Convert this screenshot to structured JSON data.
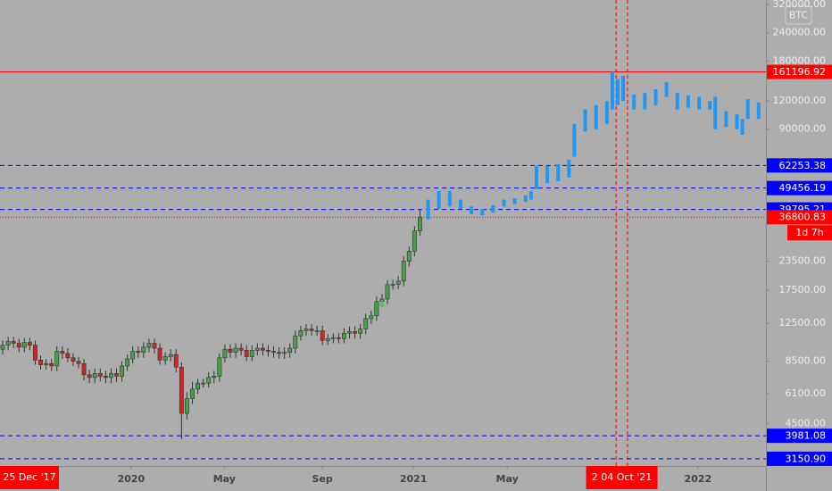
{
  "chart_data": {
    "type": "candlestick",
    "symbol": "BTC",
    "log_scale": true,
    "ylim": [
      2270,
      335000
    ],
    "xlim": [
      0,
      141.35
    ],
    "yticks": [
      {
        "value": 320000,
        "label": "320000.00"
      },
      {
        "value": 240000,
        "label": "240000.00"
      },
      {
        "value": 180000,
        "label": "180000.00"
      },
      {
        "value": 120000,
        "label": "120000.00"
      },
      {
        "value": 90000,
        "label": "90000.00"
      },
      {
        "value": 23500,
        "label": "23500.00"
      },
      {
        "value": 17500,
        "label": "17500.00"
      },
      {
        "value": 12500,
        "label": "12500.00"
      },
      {
        "value": 8500,
        "label": "8500.00"
      },
      {
        "value": 6100,
        "label": "6100.00"
      },
      {
        "value": 4500,
        "label": "4500.00"
      }
    ],
    "xticks": [
      {
        "value": 24.2,
        "label": "2020"
      },
      {
        "value": 41.4,
        "label": "May"
      },
      {
        "value": 59.5,
        "label": "Sep"
      },
      {
        "value": 76.3,
        "label": "2021"
      },
      {
        "value": 93.6,
        "label": "May"
      },
      {
        "value": 128.8,
        "label": "2022"
      }
    ],
    "start_label": "25 Dec '17",
    "cursor_label": "2  04 Oct '21",
    "cursor_lines": [
      113.7,
      115.8
    ],
    "countdown": "1d 7h",
    "up_color": "#43a047",
    "down_color": "#c62828",
    "open": [
      9600,
      10000,
      10400,
      10200,
      9800,
      10300,
      10000,
      8600,
      8200,
      8300,
      8100,
      9400,
      9200,
      8800,
      8500,
      8300,
      7400,
      7200,
      7500,
      7300,
      7200,
      7500,
      7300,
      8100,
      8700,
      9400,
      9300,
      9800,
      10200,
      9700,
      8600,
      8900,
      9100,
      8000,
      5000,
      5800,
      6400,
      6800,
      6800,
      7200,
      7300,
      8800,
      9600,
      9300,
      9700,
      9500,
      8900,
      9500,
      9700,
      9500,
      9400,
      9300,
      9200,
      9300,
      9700,
      11000,
      11600,
      11800,
      11600,
      11600,
      10500,
      10700,
      10800,
      10700,
      11300,
      11500,
      11300,
      11800,
      13100,
      13500,
      15600,
      16000,
      18500,
      18600,
      19200,
      23500,
      26000,
      32000
    ],
    "high": [
      10500,
      10900,
      10900,
      10700,
      10800,
      10800,
      10500,
      9000,
      8700,
      8700,
      9900,
      9900,
      9700,
      9200,
      8900,
      8700,
      7800,
      7900,
      7900,
      7700,
      7900,
      7900,
      8500,
      9100,
      9900,
      9900,
      10300,
      10700,
      10700,
      10200,
      9300,
      9600,
      9600,
      8400,
      6200,
      6900,
      7100,
      7100,
      7600,
      7700,
      9200,
      10100,
      10100,
      10200,
      10200,
      10000,
      10000,
      10200,
      10200,
      10000,
      9900,
      9800,
      9800,
      10200,
      11600,
      12200,
      12400,
      12400,
      12200,
      12200,
      11200,
      11300,
      11300,
      11900,
      12100,
      12100,
      12400,
      13800,
      14200,
      16400,
      16800,
      19400,
      19500,
      20200,
      24700,
      27300,
      33600,
      40000
    ],
    "low": [
      9100,
      9500,
      9700,
      9300,
      9300,
      9500,
      8200,
      7800,
      7800,
      7700,
      7700,
      8700,
      8400,
      8100,
      7900,
      7000,
      6800,
      6800,
      6900,
      6800,
      6800,
      6900,
      6900,
      7700,
      8300,
      8800,
      8800,
      9300,
      9200,
      8200,
      8200,
      8500,
      7600,
      3850,
      4700,
      5500,
      6100,
      6500,
      6500,
      6800,
      6900,
      8400,
      8800,
      8800,
      9000,
      8500,
      8500,
      9000,
      9000,
      8900,
      8800,
      8700,
      8700,
      8800,
      9200,
      10500,
      11000,
      11000,
      11000,
      10000,
      10000,
      10200,
      10200,
      10200,
      10700,
      10700,
      10700,
      11200,
      12400,
      12800,
      14800,
      15200,
      17600,
      17700,
      18200,
      22300,
      24700,
      30400
    ],
    "close": [
      10000,
      10400,
      10200,
      9800,
      10300,
      10000,
      8600,
      8200,
      8300,
      8100,
      9400,
      9200,
      8800,
      8500,
      8300,
      7400,
      7200,
      7500,
      7300,
      7200,
      7500,
      7300,
      8100,
      8700,
      9400,
      9300,
      9800,
      10200,
      9700,
      8600,
      8900,
      9100,
      8000,
      5000,
      5800,
      6400,
      6800,
      6800,
      7200,
      7300,
      8800,
      9600,
      9300,
      9700,
      9500,
      8900,
      9500,
      9700,
      9500,
      9400,
      9300,
      9200,
      9300,
      9700,
      11000,
      11600,
      11800,
      11600,
      11600,
      10500,
      10700,
      10800,
      10700,
      11300,
      11500,
      11300,
      11800,
      13100,
      13500,
      15600,
      16000,
      18500,
      18600,
      19200,
      23500,
      26000,
      32000,
      36800
    ],
    "projection": {
      "color": "#2196f3",
      "x": [
        79,
        81,
        83,
        85,
        87,
        89,
        91,
        93,
        95,
        97,
        98,
        99,
        101,
        103,
        105,
        106,
        108,
        110,
        112,
        113,
        114,
        115,
        117,
        119,
        121,
        123,
        125,
        127,
        129,
        131,
        132,
        134,
        136,
        137,
        138,
        140
      ],
      "low": [
        36000,
        40000,
        41000,
        40000,
        38000,
        37500,
        38500,
        41000,
        42000,
        43000,
        44000,
        49000,
        52000,
        53000,
        55000,
        68000,
        88000,
        90000,
        95000,
        110000,
        115000,
        120000,
        110000,
        110000,
        115000,
        125000,
        110000,
        112000,
        110000,
        110000,
        90000,
        92000,
        90000,
        85000,
        100000,
        100000
      ],
      "high": [
        44000,
        48000,
        48000,
        44000,
        41000,
        40000,
        41500,
        44000,
        44500,
        46000,
        48000,
        62000,
        62000,
        63000,
        66000,
        95000,
        110000,
        115000,
        120000,
        161196.92,
        150000,
        155000,
        128000,
        130000,
        135000,
        145000,
        130000,
        127000,
        125000,
        120000,
        125000,
        108000,
        105000,
        100000,
        122000,
        118000
      ]
    },
    "signals": [
      {
        "x": 70.5,
        "value": 15300,
        "color": "#66bb6a"
      }
    ],
    "levels": [
      {
        "value": 161196.92,
        "label": "161196.92",
        "color": "#ff0000",
        "style": "solid"
      },
      {
        "value": 62253.38,
        "label": "62253.38",
        "color": "#0000ff",
        "style": "dashed"
      },
      {
        "value": 49456.19,
        "label": "49456.19",
        "color": "#0000ff",
        "style": "dashed"
      },
      {
        "value": 39795.21,
        "label": "39795.21",
        "color": "#0000ff",
        "style": "dashed"
      },
      {
        "value": 36800.83,
        "label": "36800.83",
        "color": "#ff0000",
        "style": "dotted"
      },
      {
        "value": 3981.08,
        "label": "3981.08",
        "color": "#0000ff",
        "style": "dashed"
      },
      {
        "value": 3150.9,
        "label": "3150.90",
        "color": "#0000ff",
        "style": "dashed"
      }
    ]
  }
}
